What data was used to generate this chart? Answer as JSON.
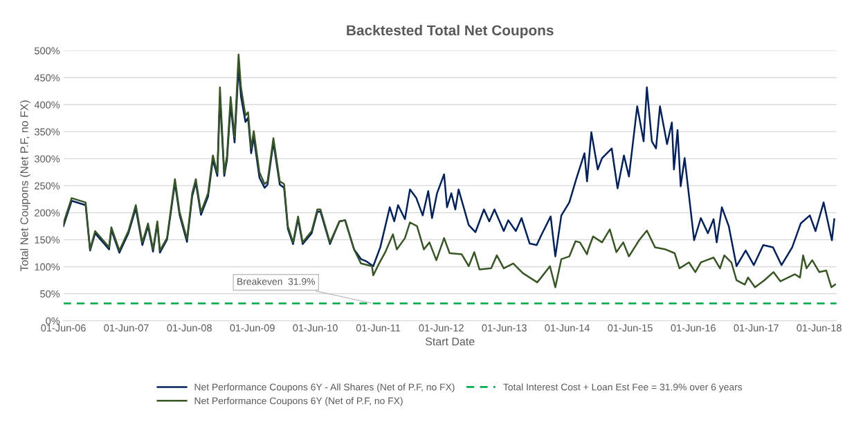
{
  "chart_data": {
    "type": "line",
    "title": "Backtested Total Net Coupons",
    "xlabel": "Start Date",
    "ylabel": "Total Net Coupons (Net P.F, no FX)",
    "xlim": [
      "2006-06-01",
      "2018-09-10"
    ],
    "xticks": [
      {
        "value": "2006-06-01",
        "label": "01-Jun-06"
      },
      {
        "value": "2007-06-01",
        "label": "01-Jun-07"
      },
      {
        "value": "2008-06-01",
        "label": "01-Jun-08"
      },
      {
        "value": "2009-06-01",
        "label": "01-Jun-09"
      },
      {
        "value": "2010-06-01",
        "label": "01-Jun-10"
      },
      {
        "value": "2011-06-01",
        "label": "01-Jun-11"
      },
      {
        "value": "2012-06-01",
        "label": "01-Jun-12"
      },
      {
        "value": "2013-06-01",
        "label": "01-Jun-13"
      },
      {
        "value": "2014-06-01",
        "label": "01-Jun-14"
      },
      {
        "value": "2015-06-01",
        "label": "01-Jun-15"
      },
      {
        "value": "2016-06-01",
        "label": "01-Jun-16"
      },
      {
        "value": "2017-06-01",
        "label": "01-Jun-17"
      },
      {
        "value": "2018-06-01",
        "label": "01-Jun-18"
      }
    ],
    "ylim": [
      0,
      500
    ],
    "yticks": [
      {
        "value": 0,
        "label": "0%"
      },
      {
        "value": 50,
        "label": "50%"
      },
      {
        "value": 100,
        "label": "100%"
      },
      {
        "value": 150,
        "label": "150%"
      },
      {
        "value": 200,
        "label": "200%"
      },
      {
        "value": 250,
        "label": "250%"
      },
      {
        "value": 300,
        "label": "300%"
      },
      {
        "value": 350,
        "label": "350%"
      },
      {
        "value": 400,
        "label": "400%"
      },
      {
        "value": 450,
        "label": "450%"
      },
      {
        "value": 500,
        "label": "500%"
      }
    ],
    "grid": "y",
    "legend": "bottom",
    "marker": "none",
    "line_style": "solid",
    "series": [
      {
        "name": "Net Performance Coupons 6Y - All Shares (Net of P.F, no FX)",
        "color": "#002060",
        "x": [
          "2006-06-01",
          "2006-07-19",
          "2006-10-08",
          "2006-11-03",
          "2006-12-02",
          "2007-02-21",
          "2007-03-06",
          "2007-04-22",
          "2007-06-13",
          "2007-07-26",
          "2007-09-02",
          "2007-10-05",
          "2007-11-03",
          "2007-11-28",
          "2007-12-13",
          "2008-01-23",
          "2008-03-09",
          "2008-04-05",
          "2008-05-18",
          "2008-06-17",
          "2008-07-08",
          "2008-08-07",
          "2008-09-17",
          "2008-10-15",
          "2008-11-10",
          "2008-11-25",
          "2008-12-20",
          "2009-01-05",
          "2009-01-26",
          "2009-02-18",
          "2009-03-13",
          "2009-03-27",
          "2009-04-22",
          "2009-05-07",
          "2009-05-25",
          "2009-06-09",
          "2009-07-12",
          "2009-08-11",
          "2009-08-28",
          "2009-10-01",
          "2009-11-07",
          "2009-12-02",
          "2009-12-24",
          "2010-01-23",
          "2010-02-21",
          "2010-03-20",
          "2010-05-11",
          "2010-06-13",
          "2010-07-01",
          "2010-08-25",
          "2010-10-19",
          "2010-11-21",
          "2011-01-12",
          "2011-02-21",
          "2011-03-24",
          "2011-05-03",
          "2011-06-13",
          "2011-08-07",
          "2011-09-02",
          "2011-09-24",
          "2011-11-03",
          "2011-12-02",
          "2012-01-08",
          "2012-02-14",
          "2012-03-17",
          "2012-04-08",
          "2012-05-07",
          "2012-06-17",
          "2012-07-04",
          "2012-07-29",
          "2012-08-21",
          "2012-09-09",
          "2012-11-07",
          "2012-12-16",
          "2013-02-03",
          "2013-03-06",
          "2013-04-05",
          "2013-05-29",
          "2013-06-24",
          "2013-08-07",
          "2013-09-09",
          "2013-10-26",
          "2013-12-06",
          "2014-01-01",
          "2014-02-25",
          "2014-03-24",
          "2014-04-28",
          "2014-06-13",
          "2014-07-23",
          "2014-09-09",
          "2014-09-24",
          "2014-10-19",
          "2014-11-25",
          "2014-12-20",
          "2015-02-14",
          "2015-03-20",
          "2015-04-26",
          "2015-05-25",
          "2015-07-12",
          "2015-08-18",
          "2015-09-06",
          "2015-10-05",
          "2015-10-29",
          "2015-11-21",
          "2016-01-01",
          "2016-01-29",
          "2016-02-10",
          "2016-03-02",
          "2016-03-20",
          "2016-04-12",
          "2016-05-07",
          "2016-06-06",
          "2016-07-15",
          "2016-08-25",
          "2016-09-27",
          "2016-10-15",
          "2016-11-14",
          "2016-12-24",
          "2017-02-07",
          "2017-04-01",
          "2017-05-18",
          "2017-07-12",
          "2017-09-06",
          "2017-10-26",
          "2017-12-27",
          "2018-02-14",
          "2018-04-08",
          "2018-05-11",
          "2018-06-27",
          "2018-08-14",
          "2018-08-28"
        ],
        "values": [
          175,
          222,
          214,
          130,
          162,
          132,
          168,
          126,
          162,
          208,
          140,
          175,
          128,
          180,
          126,
          150,
          255,
          196,
          146,
          230,
          256,
          196,
          230,
          298,
          268,
          415,
          268,
          298,
          400,
          330,
          470,
          415,
          368,
          376,
          310,
          340,
          265,
          246,
          252,
          330,
          252,
          246,
          170,
          142,
          188,
          142,
          162,
          202,
          202,
          142,
          184,
          186,
          132,
          114,
          110,
          101,
          136,
          210,
          184,
          214,
          188,
          243,
          227,
          195,
          240,
          190,
          236,
          271,
          210,
          236,
          206,
          243,
          177,
          164,
          206,
          184,
          206,
          166,
          186,
          166,
          190,
          143,
          140,
          158,
          193,
          119,
          195,
          219,
          262,
          310,
          258,
          349,
          280,
          301,
          319,
          245,
          306,
          267,
          397,
          332,
          432,
          332,
          319,
          397,
          327,
          367,
          280,
          353,
          249,
          301,
          232,
          149,
          190,
          162,
          188,
          145,
          210,
          175,
          101,
          130,
          103,
          140,
          136,
          103,
          136,
          180,
          195,
          166,
          219,
          149,
          188
        ]
      },
      {
        "name": "Net Performance Coupons 6Y (Net of P.F, no FX)",
        "color": "#375623",
        "x": [
          "2006-06-01",
          "2006-07-19",
          "2006-10-08",
          "2006-11-03",
          "2006-12-02",
          "2007-02-21",
          "2007-03-06",
          "2007-04-22",
          "2007-06-13",
          "2007-07-26",
          "2007-09-02",
          "2007-10-05",
          "2007-11-03",
          "2007-11-28",
          "2007-12-13",
          "2008-01-23",
          "2008-03-09",
          "2008-04-05",
          "2008-05-18",
          "2008-06-17",
          "2008-07-08",
          "2008-08-07",
          "2008-09-17",
          "2008-10-15",
          "2008-11-10",
          "2008-11-25",
          "2008-12-20",
          "2009-01-05",
          "2009-01-26",
          "2009-02-18",
          "2009-03-13",
          "2009-03-27",
          "2009-04-22",
          "2009-05-07",
          "2009-05-25",
          "2009-06-09",
          "2009-07-12",
          "2009-08-11",
          "2009-08-28",
          "2009-10-01",
          "2009-11-07",
          "2009-12-02",
          "2009-12-24",
          "2010-01-23",
          "2010-02-21",
          "2010-03-20",
          "2010-05-11",
          "2010-06-13",
          "2010-07-01",
          "2010-08-25",
          "2010-10-19",
          "2010-11-21",
          "2011-01-12",
          "2011-02-21",
          "2011-04-26",
          "2011-05-03",
          "2011-06-06",
          "2011-07-12",
          "2011-08-25",
          "2011-09-17",
          "2011-11-03",
          "2011-12-02",
          "2012-01-12",
          "2012-02-21",
          "2012-03-24",
          "2012-05-03",
          "2012-06-17",
          "2012-07-19",
          "2012-09-27",
          "2012-11-07",
          "2012-12-09",
          "2013-01-08",
          "2013-03-17",
          "2013-04-19",
          "2013-05-29",
          "2013-07-23",
          "2013-09-17",
          "2013-12-09",
          "2014-01-01",
          "2014-02-21",
          "2014-03-24",
          "2014-04-28",
          "2014-06-13",
          "2014-07-19",
          "2014-08-14",
          "2014-09-24",
          "2014-10-01",
          "2014-10-29",
          "2014-12-20",
          "2015-02-03",
          "2015-03-13",
          "2015-04-22",
          "2015-05-25",
          "2015-07-23",
          "2015-09-06",
          "2015-10-23",
          "2015-12-24",
          "2016-02-14",
          "2016-03-13",
          "2016-05-07",
          "2016-06-13",
          "2016-07-15",
          "2016-09-27",
          "2016-11-03",
          "2016-11-28",
          "2017-01-08",
          "2017-02-07",
          "2017-03-27",
          "2017-04-15",
          "2017-05-25",
          "2017-07-19",
          "2017-09-09",
          "2017-10-19",
          "2018-01-12",
          "2018-02-10",
          "2018-02-28",
          "2018-03-20",
          "2018-04-22",
          "2018-06-02",
          "2018-07-12",
          "2018-08-11",
          "2018-09-02"
        ],
        "values": [
          180,
          227,
          219,
          132,
          166,
          136,
          173,
          130,
          166,
          214,
          145,
          180,
          132,
          184,
          130,
          153,
          262,
          201,
          151,
          236,
          262,
          201,
          236,
          306,
          273,
          432,
          273,
          306,
          414,
          340,
          493,
          432,
          380,
          386,
          319,
          351,
          275,
          253,
          258,
          338,
          258,
          253,
          175,
          145,
          193,
          145,
          166,
          206,
          206,
          145,
          184,
          186,
          132,
          106,
          101,
          84,
          106,
          127,
          160,
          132,
          153,
          182,
          175,
          132,
          145,
          112,
          153,
          125,
          123,
          101,
          127,
          95,
          97,
          121,
          97,
          106,
          88,
          71,
          80,
          101,
          62,
          114,
          119,
          147,
          145,
          123,
          132,
          156,
          145,
          169,
          127,
          145,
          119,
          149,
          167,
          136,
          132,
          125,
          97,
          108,
          90,
          108,
          117,
          97,
          121,
          108,
          75,
          67,
          80,
          62,
          75,
          90,
          73,
          86,
          80,
          121,
          97,
          112,
          90,
          93,
          62,
          67
        ]
      }
    ],
    "ref_lines": [
      {
        "axis": "y",
        "value": 31.9,
        "label": "Total Interest Cost + Loan Est Fee = 31.9% over 6 years",
        "color": "#00b050",
        "line_style": "dashed"
      }
    ],
    "annotations": [
      {
        "text": "Breakeven  31.9%",
        "x": "2011-05-01",
        "y": 31.9
      }
    ]
  }
}
